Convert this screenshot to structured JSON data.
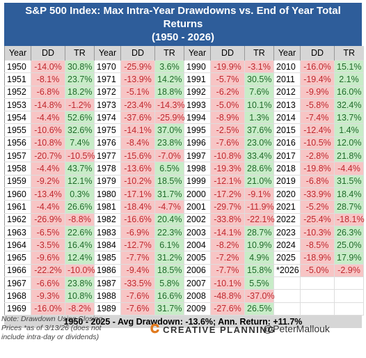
{
  "header": {
    "title": "S&P 500 Index: Max Intra-Year Drawdowns vs. End of Year Total Returns",
    "subtitle": "(1950 - 2026)"
  },
  "table": {
    "columns": [
      "Year",
      "DD",
      "TR"
    ],
    "groups": [
      [
        [
          "1950",
          "-14.0%",
          "30.8%"
        ],
        [
          "1951",
          "-8.1%",
          "23.7%"
        ],
        [
          "1952",
          "-6.8%",
          "18.2%"
        ],
        [
          "1953",
          "-14.8%",
          "-1.2%"
        ],
        [
          "1954",
          "-4.4%",
          "52.6%"
        ],
        [
          "1955",
          "-10.6%",
          "32.6%"
        ],
        [
          "1956",
          "-10.8%",
          "7.4%"
        ],
        [
          "1957",
          "-20.7%",
          "-10.5%"
        ],
        [
          "1958",
          "-4.4%",
          "43.7%"
        ],
        [
          "1959",
          "-9.2%",
          "12.1%"
        ],
        [
          "1960",
          "-13.4%",
          "0.3%"
        ],
        [
          "1961",
          "-4.4%",
          "26.6%"
        ],
        [
          "1962",
          "-26.9%",
          "-8.8%"
        ],
        [
          "1963",
          "-6.5%",
          "22.6%"
        ],
        [
          "1964",
          "-3.5%",
          "16.4%"
        ],
        [
          "1965",
          "-9.6%",
          "12.4%"
        ],
        [
          "1966",
          "-22.2%",
          "-10.0%"
        ],
        [
          "1967",
          "-6.6%",
          "23.8%"
        ],
        [
          "1968",
          "-9.3%",
          "10.8%"
        ],
        [
          "1969",
          "-16.0%",
          "-8.2%"
        ]
      ],
      [
        [
          "1970",
          "-25.9%",
          "3.6%"
        ],
        [
          "1971",
          "-13.9%",
          "14.2%"
        ],
        [
          "1972",
          "-5.1%",
          "18.8%"
        ],
        [
          "1973",
          "-23.4%",
          "-14.3%"
        ],
        [
          "1974",
          "-37.6%",
          "-25.9%"
        ],
        [
          "1975",
          "-14.1%",
          "37.0%"
        ],
        [
          "1976",
          "-8.4%",
          "23.8%"
        ],
        [
          "1977",
          "-15.6%",
          "-7.0%"
        ],
        [
          "1978",
          "-13.6%",
          "6.5%"
        ],
        [
          "1979",
          "-10.2%",
          "18.5%"
        ],
        [
          "1980",
          "-17.1%",
          "31.7%"
        ],
        [
          "1981",
          "-18.4%",
          "-4.7%"
        ],
        [
          "1982",
          "-16.6%",
          "20.4%"
        ],
        [
          "1983",
          "-6.9%",
          "22.3%"
        ],
        [
          "1984",
          "-12.7%",
          "6.1%"
        ],
        [
          "1985",
          "-7.7%",
          "31.2%"
        ],
        [
          "1986",
          "-9.4%",
          "18.5%"
        ],
        [
          "1987",
          "-33.5%",
          "5.8%"
        ],
        [
          "1988",
          "-7.6%",
          "16.6%"
        ],
        [
          "1989",
          "-7.6%",
          "31.7%"
        ]
      ],
      [
        [
          "1990",
          "-19.9%",
          "-3.1%"
        ],
        [
          "1991",
          "-5.7%",
          "30.5%"
        ],
        [
          "1992",
          "-6.2%",
          "7.6%"
        ],
        [
          "1993",
          "-5.0%",
          "10.1%"
        ],
        [
          "1994",
          "-8.9%",
          "1.3%"
        ],
        [
          "1995",
          "-2.5%",
          "37.6%"
        ],
        [
          "1996",
          "-7.6%",
          "23.0%"
        ],
        [
          "1997",
          "-10.8%",
          "33.4%"
        ],
        [
          "1998",
          "-19.3%",
          "28.6%"
        ],
        [
          "1999",
          "-12.1%",
          "21.0%"
        ],
        [
          "2000",
          "-17.2%",
          "-9.1%"
        ],
        [
          "2001",
          "-29.7%",
          "-11.9%"
        ],
        [
          "2002",
          "-33.8%",
          "-22.1%"
        ],
        [
          "2003",
          "-14.1%",
          "28.7%"
        ],
        [
          "2004",
          "-8.2%",
          "10.9%"
        ],
        [
          "2005",
          "-7.2%",
          "4.9%"
        ],
        [
          "2006",
          "-7.7%",
          "15.8%"
        ],
        [
          "2007",
          "-10.1%",
          "5.5%"
        ],
        [
          "2008",
          "-48.8%",
          "-37.0%"
        ],
        [
          "2009",
          "-27.6%",
          "26.5%"
        ]
      ],
      [
        [
          "2010",
          "-16.0%",
          "15.1%"
        ],
        [
          "2011",
          "-19.4%",
          "2.1%"
        ],
        [
          "2012",
          "-9.9%",
          "16.0%"
        ],
        [
          "2013",
          "-5.8%",
          "32.4%"
        ],
        [
          "2014",
          "-7.4%",
          "13.7%"
        ],
        [
          "2015",
          "-12.4%",
          "1.4%"
        ],
        [
          "2016",
          "-10.5%",
          "12.0%"
        ],
        [
          "2017",
          "-2.8%",
          "21.8%"
        ],
        [
          "2018",
          "-19.8%",
          "-4.4%"
        ],
        [
          "2019",
          "-6.8%",
          "31.5%"
        ],
        [
          "2020",
          "-33.9%",
          "18.4%"
        ],
        [
          "2021",
          "-5.2%",
          "28.7%"
        ],
        [
          "2022",
          "-25.4%",
          "-18.1%"
        ],
        [
          "2023",
          "-10.3%",
          "26.3%"
        ],
        [
          "2024",
          "-8.5%",
          "25.0%"
        ],
        [
          "2025",
          "-18.9%",
          "17.9%"
        ],
        [
          "*2026",
          "-5.0%",
          "-2.9%"
        ]
      ]
    ],
    "summary": "1950 - 2025 - Avg Drawdown: -13.6%; Ann. Return: +11.7%"
  },
  "footer": {
    "note": "Note: Drawdown Using Closing Prices *as of 3/13/26 (does not include intra-day or dividends)",
    "brand": "CREATIVE PLANNING",
    "handle": "@PeterMallouk"
  }
}
